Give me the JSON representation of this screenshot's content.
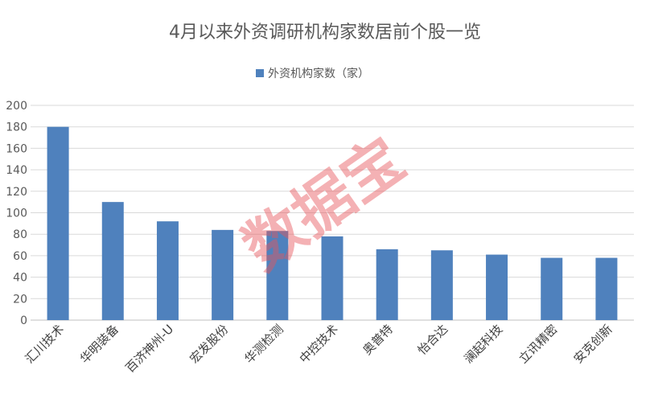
{
  "chart_data": {
    "type": "bar",
    "title": "4月以来外资调研机构家数居前个股一览",
    "legend": {
      "position": "top",
      "entries": [
        "外资机构家数（家）"
      ]
    },
    "series": [
      {
        "name": "外资机构家数（家）",
        "color": "#4f81bd",
        "values": [
          180,
          110,
          92,
          84,
          83,
          78,
          66,
          65,
          61,
          58,
          58
        ]
      }
    ],
    "categories": [
      "汇川技术",
      "华明装备",
      "百济神州-U",
      "宏发股份",
      "华测检测",
      "中控技术",
      "奥普特",
      "怡合达",
      "澜起科技",
      "立讯精密",
      "安克创新"
    ],
    "ylim": [
      0,
      200
    ],
    "yticks": [
      "0",
      "20",
      "40",
      "60",
      "80",
      "100",
      "120",
      "140",
      "160",
      "180",
      "200"
    ],
    "grid": true,
    "xlabel": "",
    "ylabel": ""
  },
  "watermark": {
    "text": "数据宝",
    "color": "#e8555a"
  }
}
